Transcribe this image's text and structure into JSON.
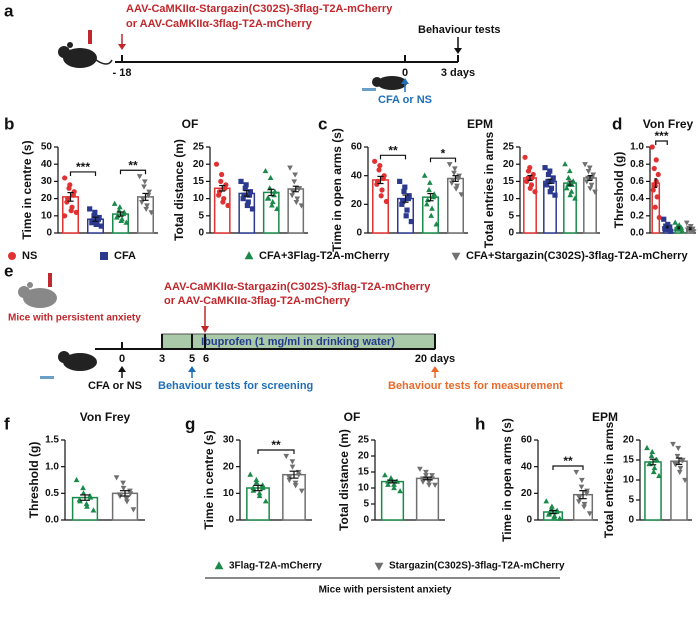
{
  "panel_labels": [
    "a",
    "b",
    "c",
    "d",
    "e",
    "f",
    "g",
    "h"
  ],
  "timeline_a": {
    "virus": [
      "AAV-CaMKIIα-Stargazin(C302S)-3flag-T2A-mCherry",
      "or AAV-CaMKIIα-3flag-T2A-mCherry"
    ],
    "days": [
      "- 18",
      "0",
      "3 days"
    ],
    "behaviour": "Behaviour tests",
    "injection": "CFA or NS"
  },
  "timeline_e": {
    "virus": [
      "AAV-CaMKIIα-Stargazin(C302S)-3flag-T2A-mCherry",
      "or AAV-CaMKIIα-3flag-T2A-mCherry"
    ],
    "mice": "Mice with persistent anxiety",
    "drug": "Ibuprofen (1 mg/ml in drinking water)",
    "days": [
      "0",
      "3",
      "5",
      "6",
      "20 days"
    ],
    "injection": "CFA or NS",
    "screening": "Behaviour tests for screening",
    "measurement": "Behaviour tests for measurement"
  },
  "legend_top": [
    {
      "name": "NS",
      "color": "#e03232",
      "marker": "circle"
    },
    {
      "name": "CFA",
      "color": "#2b3a8f",
      "marker": "square"
    },
    {
      "name": "CFA+3Flag-T2A-mCherry",
      "color": "#1a8a4a",
      "marker": "triangle"
    },
    {
      "name": "CFA+Stargazin(C302S)-3flag-T2A-mCherry",
      "color": "#707070",
      "marker": "triangle-down"
    }
  ],
  "legend_bottom": {
    "items": [
      {
        "name": "3Flag-T2A-mCherry",
        "color": "#1a8a4a",
        "marker": "triangle"
      },
      {
        "name": "Stargazin(C302S)-3flag-T2A-mCherry",
        "color": "#707070",
        "marker": "triangle-down"
      }
    ],
    "group": "Mice with persistent anxiety"
  },
  "chart_data": [
    {
      "type": "bar",
      "title": "OF",
      "y_label": "Time in centre (s)",
      "ylim": [
        0,
        50
      ],
      "yticks": [
        0,
        10,
        20,
        30,
        40,
        50
      ],
      "bars": [
        {
          "color": "#e03232",
          "marker": "circle",
          "value": 21,
          "error": 2.5,
          "points": [
            32,
            28,
            26,
            24,
            22,
            20,
            18,
            15,
            13,
            12,
            10
          ]
        },
        {
          "color": "#2b3a8f",
          "marker": "square",
          "value": 8,
          "error": 1.2,
          "points": [
            14,
            12,
            10,
            9,
            8,
            7,
            6,
            5,
            5,
            4
          ]
        },
        {
          "color": "#1a8a4a",
          "marker": "triangle",
          "value": 11,
          "error": 1.2,
          "points": [
            17,
            15,
            13,
            12,
            11,
            10,
            9,
            8,
            7,
            6
          ]
        },
        {
          "color": "#707070",
          "marker": "triangle-down",
          "value": 21,
          "error": 2,
          "points": [
            33,
            30,
            27,
            24,
            22,
            20,
            18,
            16,
            14,
            12
          ]
        }
      ],
      "annotations": [
        {
          "text": "***",
          "from": 0,
          "to": 1
        },
        {
          "text": "**",
          "from": 2,
          "to": 3
        }
      ]
    },
    {
      "type": "bar",
      "y_label": "Total distance (m)",
      "ylim": [
        0,
        25
      ],
      "yticks": [
        0,
        5,
        10,
        15,
        20,
        25
      ],
      "bars": [
        {
          "color": "#e03232",
          "marker": "circle",
          "value": 13,
          "error": 0.8,
          "points": [
            20,
            17,
            15,
            14,
            13,
            12,
            11,
            10,
            9,
            8
          ]
        },
        {
          "color": "#2b3a8f",
          "marker": "square",
          "value": 11.5,
          "error": 0.8,
          "points": [
            15,
            14,
            13,
            12,
            11,
            11,
            10,
            9,
            8,
            7
          ]
        },
        {
          "color": "#1a8a4a",
          "marker": "triangle",
          "value": 11.8,
          "error": 0.9,
          "points": [
            18,
            16,
            13,
            12,
            11,
            10,
            10,
            9,
            8,
            7
          ]
        },
        {
          "color": "#707070",
          "marker": "triangle-down",
          "value": 12.8,
          "error": 0.8,
          "points": [
            19,
            17,
            15,
            13,
            13,
            12,
            11,
            10,
            9,
            8
          ]
        }
      ],
      "annotations": []
    },
    {
      "type": "bar",
      "title": "EPM",
      "y_label": "Time in open arms (s)",
      "ylim": [
        0,
        60
      ],
      "yticks": [
        0,
        20,
        40,
        60
      ],
      "bars": [
        {
          "color": "#e03232",
          "marker": "circle",
          "value": 37,
          "error": 2.5,
          "points": [
            50,
            47,
            44,
            40,
            38,
            36,
            34,
            30,
            26,
            22
          ]
        },
        {
          "color": "#2b3a8f",
          "marker": "square",
          "value": 24,
          "error": 2.5,
          "points": [
            36,
            32,
            29,
            26,
            24,
            22,
            20,
            16,
            12,
            8
          ]
        },
        {
          "color": "#1a8a4a",
          "marker": "triangle",
          "value": 25,
          "error": 2.5,
          "points": [
            40,
            35,
            30,
            27,
            25,
            23,
            20,
            17,
            12,
            6
          ]
        },
        {
          "color": "#707070",
          "marker": "triangle-down",
          "value": 38,
          "error": 2,
          "points": [
            48,
            45,
            42,
            40,
            38,
            37,
            35,
            33,
            31,
            27
          ]
        }
      ],
      "annotations": [
        {
          "text": "**",
          "from": 0,
          "to": 1
        },
        {
          "text": "*",
          "from": 2,
          "to": 3
        }
      ]
    },
    {
      "type": "bar",
      "y_label": "Total entries in arms",
      "ylim": [
        0,
        25
      ],
      "yticks": [
        0,
        5,
        10,
        15,
        20,
        25
      ],
      "bars": [
        {
          "color": "#e03232",
          "marker": "circle",
          "value": 16,
          "error": 0.7,
          "points": [
            22,
            19,
            18,
            17,
            16,
            16,
            15,
            14,
            13,
            12
          ]
        },
        {
          "color": "#2b3a8f",
          "marker": "square",
          "value": 15,
          "error": 0.6,
          "points": [
            19,
            18,
            17,
            16,
            15,
            15,
            14,
            13,
            12,
            11
          ]
        },
        {
          "color": "#1a8a4a",
          "marker": "triangle",
          "value": 14.5,
          "error": 0.6,
          "points": [
            20,
            18,
            16,
            15,
            14,
            14,
            13,
            12,
            11,
            10
          ]
        },
        {
          "color": "#707070",
          "marker": "triangle-down",
          "value": 16,
          "error": 0.7,
          "points": [
            20,
            19,
            18,
            17,
            16,
            16,
            15,
            14,
            13,
            12
          ]
        }
      ],
      "annotations": []
    },
    {
      "type": "bar",
      "title": "Von Frey",
      "y_label": "Threshold (g)",
      "ylim": [
        0,
        1
      ],
      "yticks": [
        {
          "value": 0,
          "label": "0.0"
        },
        0.2,
        0.4,
        0.6,
        0.8,
        {
          "value": 1,
          "label": "1.0"
        }
      ],
      "bars": [
        {
          "color": "#e03232",
          "marker": "circle",
          "value": 0.58,
          "error": 0.05,
          "points": [
            1.0,
            0.85,
            0.75,
            0.68,
            0.6,
            0.55,
            0.5,
            0.42,
            0.3,
            0.18
          ]
        },
        {
          "color": "#2b3a8f",
          "marker": "square",
          "value": 0.07,
          "error": 0.01,
          "points": [
            0.16,
            0.1,
            0.08,
            0.07,
            0.06,
            0.06,
            0.05,
            0.04,
            0.04,
            0.02
          ]
        },
        {
          "color": "#1a8a4a",
          "marker": "triangle",
          "value": 0.06,
          "error": 0.01,
          "points": [
            0.12,
            0.09,
            0.07,
            0.06,
            0.06,
            0.05,
            0.05,
            0.04,
            0.04,
            0.02
          ]
        },
        {
          "color": "#707070",
          "marker": "triangle-down",
          "value": 0.05,
          "error": 0.01,
          "points": [
            0.12,
            0.08,
            0.06,
            0.05,
            0.05,
            0.04,
            0.04,
            0.03,
            0.03,
            0.02
          ]
        }
      ],
      "annotations": [
        {
          "text": "***",
          "from": 0,
          "to": 1
        }
      ]
    },
    {
      "type": "bar",
      "title": "Von Frey",
      "y_label": "Threshold (g)",
      "ylim": [
        0,
        1.5
      ],
      "yticks": [
        {
          "value": 0,
          "label": "0.0"
        },
        0.5,
        {
          "value": 1,
          "label": "1.0"
        },
        1.5
      ],
      "bars": [
        {
          "color": "#1a8a4a",
          "marker": "triangle",
          "value": 0.42,
          "error": 0.05,
          "points": [
            0.75,
            0.6,
            0.5,
            0.45,
            0.42,
            0.38,
            0.35,
            0.3,
            0.25,
            0.18
          ]
        },
        {
          "color": "#707070",
          "marker": "triangle-down",
          "value": 0.5,
          "error": 0.05,
          "points": [
            0.8,
            0.7,
            0.6,
            0.55,
            0.5,
            0.48,
            0.45,
            0.4,
            0.35,
            0.2
          ]
        }
      ],
      "annotations": []
    },
    {
      "type": "bar",
      "title": "OF",
      "y_label": "Time in centre (s)",
      "ylim": [
        0,
        30
      ],
      "yticks": [
        0,
        10,
        20,
        30
      ],
      "bars": [
        {
          "color": "#1a8a4a",
          "marker": "triangle",
          "value": 12,
          "error": 1,
          "points": [
            17,
            15,
            14,
            13,
            12,
            12,
            11,
            10,
            9,
            7
          ]
        },
        {
          "color": "#707070",
          "marker": "triangle-down",
          "value": 17,
          "error": 1.3,
          "points": [
            24,
            22,
            20,
            18,
            17,
            16,
            15,
            14,
            13,
            11
          ]
        }
      ],
      "annotations": [
        {
          "text": "**",
          "from": 0,
          "to": 1
        }
      ]
    },
    {
      "type": "bar",
      "y_label": "Total distance (m)",
      "ylim": [
        0,
        25
      ],
      "yticks": [
        0,
        5,
        10,
        15,
        20,
        25
      ],
      "bars": [
        {
          "color": "#1a8a4a",
          "marker": "triangle",
          "value": 12,
          "error": 0.4,
          "points": [
            14,
            13,
            13,
            12,
            12,
            12,
            11,
            11,
            10,
            9
          ]
        },
        {
          "color": "#707070",
          "marker": "triangle-down",
          "value": 13,
          "error": 0.4,
          "points": [
            16,
            15,
            14,
            14,
            13,
            13,
            12,
            12,
            11,
            11
          ]
        }
      ],
      "annotations": []
    },
    {
      "type": "bar",
      "title": "EPM",
      "y_label": "Time in open arms (s)",
      "ylim": [
        0,
        60
      ],
      "yticks": [
        0,
        20,
        40,
        60
      ],
      "bars": [
        {
          "color": "#1a8a4a",
          "marker": "triangle",
          "value": 6,
          "error": 1.2,
          "points": [
            14,
            10,
            8,
            7,
            6,
            5,
            4,
            3,
            2,
            1
          ]
        },
        {
          "color": "#707070",
          "marker": "triangle-down",
          "value": 19,
          "error": 3,
          "points": [
            36,
            30,
            25,
            22,
            20,
            17,
            14,
            12,
            10,
            5
          ]
        }
      ],
      "annotations": [
        {
          "text": "**",
          "from": 0,
          "to": 1
        }
      ]
    },
    {
      "type": "bar",
      "y_label": "Total entries in arms",
      "ylim": [
        0,
        20
      ],
      "yticks": [
        0,
        5,
        10,
        15,
        20
      ],
      "bars": [
        {
          "color": "#1a8a4a",
          "marker": "triangle",
          "value": 14.5,
          "error": 0.7,
          "points": [
            18,
            17,
            16,
            15,
            15,
            14,
            14,
            13,
            12,
            11
          ]
        },
        {
          "color": "#707070",
          "marker": "triangle-down",
          "value": 14.7,
          "error": 0.8,
          "points": [
            19,
            18,
            16,
            15,
            15,
            14,
            14,
            13,
            12,
            10
          ]
        }
      ],
      "annotations": []
    }
  ]
}
